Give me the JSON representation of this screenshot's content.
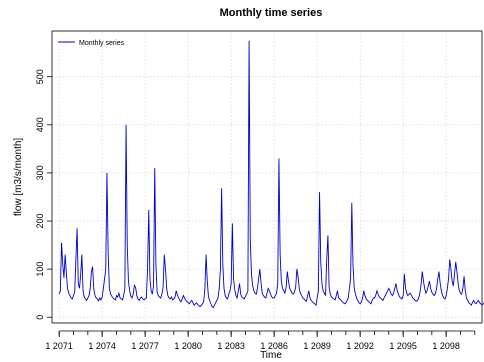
{
  "chart_data": {
    "type": "line",
    "title": "Monthly time series",
    "xlabel": "Time",
    "ylabel": "flow [m3/s/month]",
    "xlim": [
      2070.5,
      2100.5
    ],
    "ylim": [
      -12,
      595
    ],
    "yticks": [
      0,
      100,
      200,
      300,
      400,
      500
    ],
    "xtick_labels": [
      "1 2071",
      "1 2074",
      "1 2077",
      "1 2080",
      "1 2083",
      "1 2086",
      "1 2089",
      "1 2092",
      "1 2095",
      "1 2098"
    ],
    "xtick_positions": [
      2071,
      2074,
      2077,
      2080,
      2083,
      2086,
      2089,
      2092,
      2095,
      2098
    ],
    "grid": true,
    "legend_position": "top-left",
    "series": [
      {
        "name": "Monthly series",
        "color": "#0000cc",
        "start_year": 2071,
        "values": [
          48,
          55,
          155,
          110,
          82,
          130,
          92,
          60,
          50,
          45,
          40,
          38,
          46,
          52,
          120,
          185,
          70,
          60,
          88,
          130,
          55,
          42,
          38,
          35,
          40,
          45,
          60,
          95,
          105,
          58,
          45,
          40,
          38,
          34,
          40,
          36,
          42,
          60,
          80,
          100,
          300,
          135,
          62,
          48,
          44,
          40,
          38,
          36,
          45,
          42,
          50,
          40,
          38,
          36,
          45,
          60,
          400,
          150,
          75,
          55,
          44,
          40,
          48,
          66,
          62,
          45,
          38,
          35,
          40,
          42,
          38,
          36,
          38,
          40,
          100,
          223,
          80,
          55,
          48,
          65,
          310,
          110,
          52,
          45,
          42,
          40,
          48,
          62,
          130,
          100,
          60,
          45,
          40,
          38,
          42,
          36,
          38,
          42,
          55,
          46,
          40,
          35,
          32,
          38,
          45,
          40,
          35,
          33,
          30,
          28,
          32,
          35,
          30,
          25,
          28,
          30,
          26,
          24,
          22,
          25,
          28,
          32,
          60,
          130,
          75,
          42,
          35,
          28,
          22,
          20,
          25,
          30,
          35,
          40,
          60,
          100,
          268,
          110,
          60,
          45,
          40,
          38,
          48,
          55,
          70,
          195,
          80,
          58,
          45,
          40,
          55,
          70,
          48,
          42,
          40,
          38,
          44,
          48,
          55,
          575,
          160,
          90,
          65,
          55,
          50,
          48,
          60,
          80,
          100,
          72,
          50,
          45,
          42,
          40,
          50,
          60,
          55,
          48,
          42,
          40,
          40,
          45,
          50,
          70,
          330,
          130,
          75,
          60,
          55,
          50,
          62,
          95,
          75,
          60,
          55,
          50,
          48,
          52,
          62,
          100,
          85,
          60,
          50,
          45,
          40,
          38,
          35,
          33,
          45,
          55,
          40,
          35,
          32,
          30,
          28,
          25,
          40,
          55,
          260,
          115,
          70,
          55,
          50,
          45,
          120,
          170,
          62,
          48,
          42,
          40,
          38,
          36,
          45,
          55,
          40,
          38,
          35,
          32,
          30,
          28,
          30,
          35,
          40,
          60,
          80,
          238,
          108,
          62,
          48,
          40,
          35,
          30,
          28,
          32,
          40,
          55,
          45,
          38,
          35,
          33,
          30,
          28,
          35,
          40,
          40,
          45,
          55,
          48,
          42,
          40,
          38,
          35,
          40,
          45,
          50,
          55,
          60,
          55,
          48,
          45,
          50,
          60,
          70,
          55,
          48,
          42,
          40,
          38,
          45,
          90,
          60,
          50,
          45,
          48,
          50,
          45,
          40,
          38,
          35,
          33,
          35,
          40,
          50,
          68,
          95,
          75,
          60,
          50,
          55,
          65,
          75,
          60,
          52,
          48,
          45,
          50,
          60,
          80,
          95,
          70,
          55,
          45,
          40,
          38,
          45,
          60,
          80,
          120,
          100,
          75,
          65,
          90,
          115,
          95,
          70,
          55,
          50,
          48,
          60,
          85,
          55,
          40,
          35,
          30,
          28,
          25,
          30,
          35,
          30,
          28,
          32,
          35,
          30,
          28,
          25,
          28,
          30,
          28,
          26,
          30
        ]
      }
    ]
  }
}
